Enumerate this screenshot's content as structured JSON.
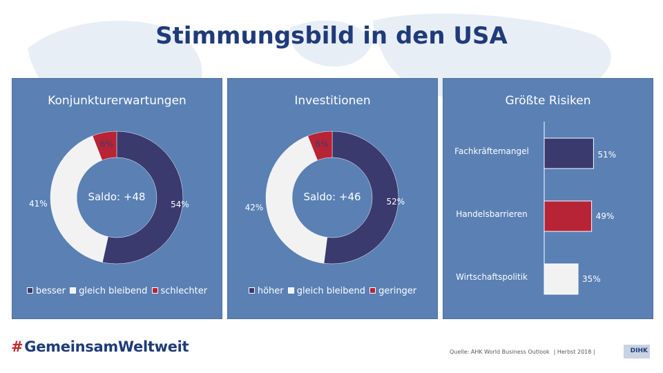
{
  "title": "Stimmungsbild in den USA",
  "colors": {
    "navy": "#3a3a6e",
    "light": "#f2f2f2",
    "red": "#b72436",
    "panel": "#5a80b4",
    "title": "#1f3b7a"
  },
  "footer": {
    "logo_hash": "#",
    "logo_text": "GemeinsamWeltweit",
    "source": "Quelle: AHK World Business Outlook",
    "season": "| Herbst 2018 |",
    "dihk": "DIHK"
  },
  "chart_data": [
    {
      "type": "pie",
      "title": "Konjunkturerwartungen",
      "center_label": "Saldo: +48",
      "categories": [
        "besser",
        "gleich bleibend",
        "schlechter"
      ],
      "values": [
        54,
        41,
        6
      ],
      "value_labels": [
        "54%",
        "41%",
        "6%"
      ],
      "colors": [
        "#3a3a6e",
        "#f2f2f2",
        "#b72436"
      ],
      "legend_position": "bottom"
    },
    {
      "type": "pie",
      "title": "Investitionen",
      "center_label": "Saldo: +46",
      "categories": [
        "höher",
        "gleich bleibend",
        "geringer"
      ],
      "values": [
        52,
        42,
        6
      ],
      "value_labels": [
        "52%",
        "42%",
        "6%"
      ],
      "colors": [
        "#3a3a6e",
        "#f2f2f2",
        "#b72436"
      ],
      "legend_position": "bottom"
    },
    {
      "type": "bar",
      "orientation": "horizontal",
      "title": "Größte Risiken",
      "categories": [
        "Fachkräftemangel",
        "Handelsbarrieren",
        "Wirtschaftspolitik"
      ],
      "values": [
        51,
        49,
        35
      ],
      "value_labels": [
        "51%",
        "49%",
        "35%"
      ],
      "colors": [
        "#3a3a6e",
        "#b72436",
        "#f2f2f2"
      ],
      "xlim": [
        0,
        100
      ]
    }
  ]
}
